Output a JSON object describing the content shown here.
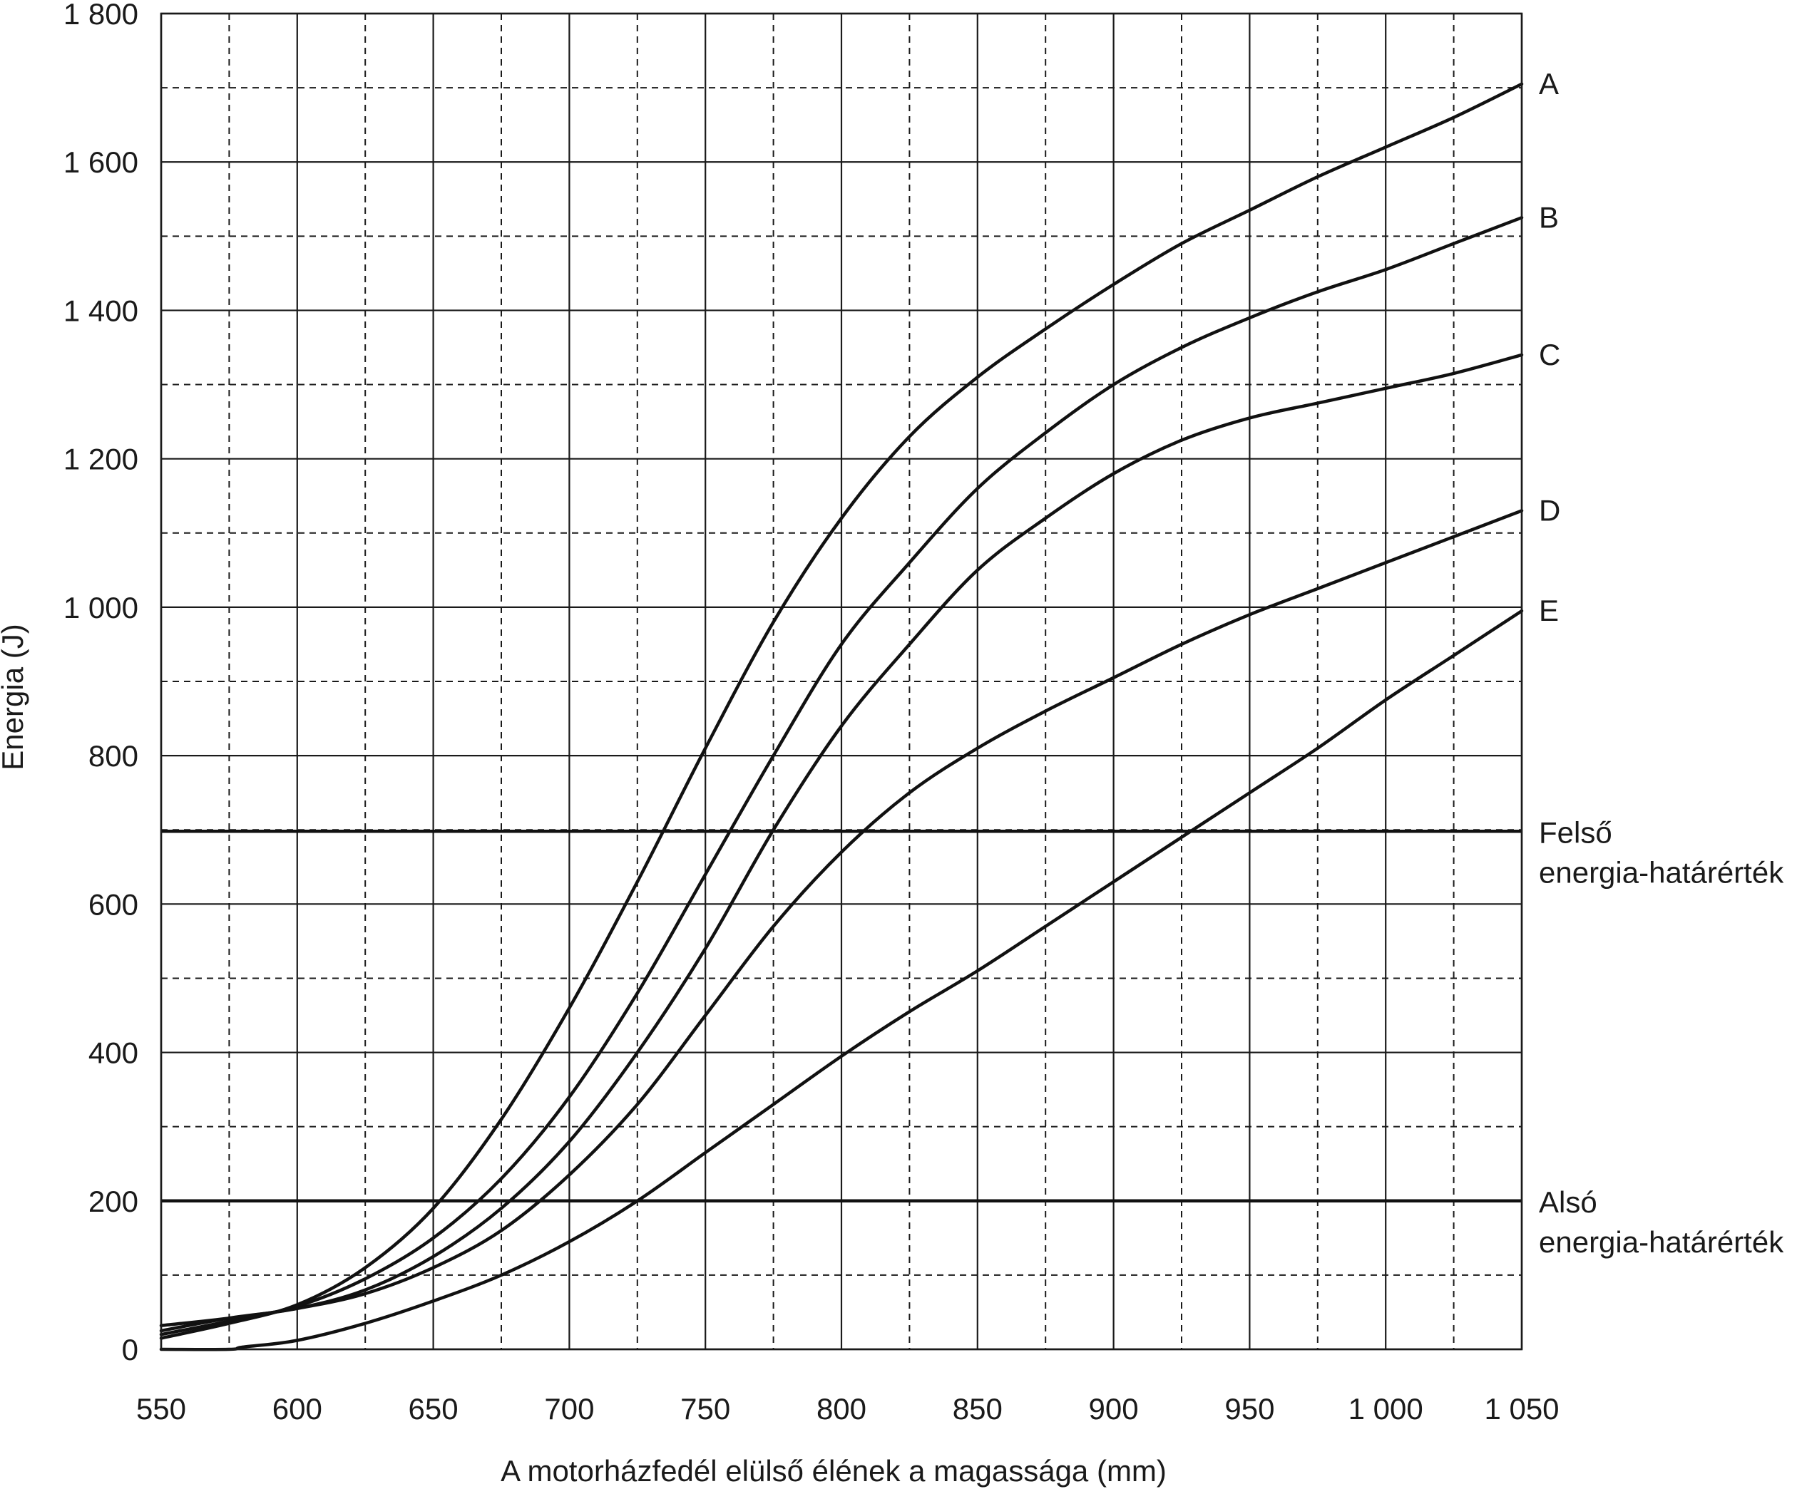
{
  "chart_data": {
    "type": "line",
    "title": "",
    "xlabel": "A motorházfedél elülső élének a magassága (mm)",
    "ylabel": "Energia (J)",
    "xlim": [
      550,
      1050
    ],
    "ylim": [
      0,
      1800
    ],
    "x_major_ticks": [
      550,
      600,
      650,
      700,
      750,
      800,
      850,
      900,
      950,
      1000,
      1050
    ],
    "x_tick_labels": [
      "550",
      "600",
      "650",
      "700",
      "750",
      "800",
      "850",
      "900",
      "950",
      "1 000",
      "1 050"
    ],
    "y_major_ticks": [
      0,
      200,
      400,
      600,
      800,
      1000,
      1200,
      1400,
      1600,
      1800
    ],
    "y_tick_labels": [
      "0",
      "200",
      "400",
      "600",
      "800",
      "1 000",
      "1 200",
      "1 400",
      "1 600",
      "1 800"
    ],
    "x_minor_ticks": [
      575,
      625,
      675,
      725,
      775,
      825,
      875,
      925,
      975,
      1025
    ],
    "y_minor_ticks": [
      100,
      300,
      500,
      700,
      900,
      1100,
      1300,
      1500,
      1700
    ],
    "grid": true,
    "series": [
      {
        "name": "A",
        "x": [
          550,
          575,
          600,
          625,
          650,
          675,
          700,
          725,
          750,
          775,
          800,
          825,
          850,
          875,
          900,
          925,
          950,
          975,
          1000,
          1025,
          1050
        ],
        "y": [
          15,
          35,
          60,
          110,
          190,
          310,
          460,
          630,
          810,
          980,
          1120,
          1230,
          1310,
          1375,
          1435,
          1490,
          1535,
          1580,
          1620,
          1660,
          1705
        ]
      },
      {
        "name": "B",
        "x": [
          550,
          575,
          600,
          625,
          650,
          675,
          700,
          725,
          750,
          775,
          800,
          825,
          850,
          875,
          900,
          925,
          950,
          975,
          1000,
          1025,
          1050
        ],
        "y": [
          20,
          38,
          58,
          95,
          150,
          230,
          340,
          480,
          640,
          800,
          950,
          1060,
          1160,
          1235,
          1300,
          1350,
          1390,
          1425,
          1455,
          1490,
          1525
        ]
      },
      {
        "name": "C",
        "x": [
          550,
          575,
          600,
          625,
          650,
          675,
          700,
          725,
          750,
          775,
          800,
          825,
          850,
          875,
          900,
          925,
          950,
          975,
          1000,
          1025,
          1050
        ],
        "y": [
          25,
          42,
          55,
          80,
          125,
          190,
          280,
          400,
          540,
          700,
          840,
          950,
          1050,
          1120,
          1180,
          1225,
          1255,
          1275,
          1295,
          1315,
          1340
        ]
      },
      {
        "name": "D",
        "x": [
          550,
          575,
          600,
          625,
          650,
          675,
          700,
          725,
          750,
          775,
          800,
          825,
          850,
          875,
          900,
          925,
          950,
          975,
          1000,
          1025,
          1050
        ],
        "y": [
          32,
          42,
          55,
          75,
          110,
          160,
          235,
          330,
          450,
          570,
          670,
          750,
          810,
          860,
          905,
          950,
          990,
          1025,
          1060,
          1095,
          1130
        ]
      },
      {
        "name": "E",
        "x": [
          550,
          575,
          580,
          600,
          625,
          650,
          675,
          700,
          725,
          750,
          775,
          800,
          825,
          850,
          875,
          900,
          925,
          950,
          975,
          1000,
          1025,
          1050
        ],
        "y": [
          0,
          0,
          3,
          12,
          35,
          65,
          100,
          145,
          200,
          265,
          330,
          395,
          455,
          510,
          570,
          630,
          690,
          750,
          810,
          875,
          935,
          995
        ]
      }
    ],
    "limits": [
      {
        "label_lines": [
          "Felső",
          "energia-határérték"
        ],
        "y": 698
      },
      {
        "label_lines": [
          "Alsó",
          "energia-határérték"
        ],
        "y": 200
      }
    ]
  }
}
